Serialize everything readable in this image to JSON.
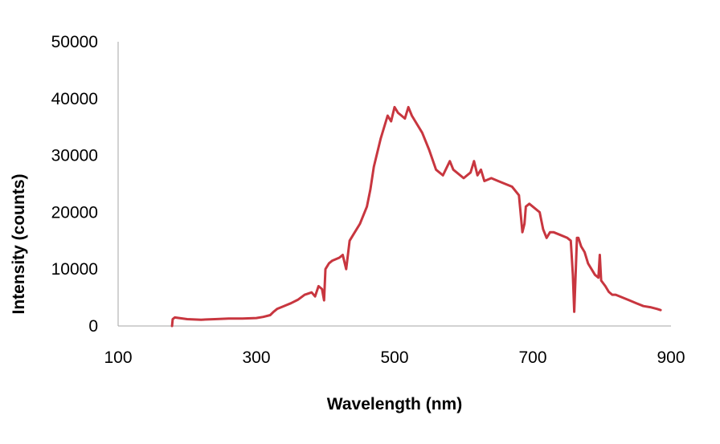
{
  "chart_data": {
    "type": "line",
    "title": "",
    "xlabel": "Wavelength (nm)",
    "ylabel": "Intensity (counts)",
    "xlim": [
      100,
      900
    ],
    "ylim": [
      0,
      50000
    ],
    "x_ticks": [
      "100",
      "300",
      "500",
      "700",
      "900"
    ],
    "y_ticks": [
      "0",
      "10000",
      "20000",
      "30000",
      "40000",
      "50000"
    ],
    "grid": false,
    "legend": "none",
    "colors": {
      "series": "#c8363f",
      "axis": "#a6a6a6"
    },
    "series": [
      {
        "x": [
          178,
          179,
          182,
          200,
          220,
          240,
          260,
          280,
          300,
          310,
          320,
          325,
          330,
          340,
          350,
          360,
          370,
          380,
          385,
          390,
          395,
          398,
          400,
          405,
          410,
          420,
          425,
          430,
          435,
          440,
          450,
          460,
          465,
          470,
          480,
          490,
          495,
          500,
          505,
          510,
          515,
          520,
          525,
          530,
          540,
          550,
          560,
          570,
          580,
          585,
          590,
          600,
          610,
          615,
          620,
          625,
          630,
          640,
          650,
          660,
          670,
          680,
          685,
          688,
          690,
          695,
          700,
          710,
          715,
          720,
          725,
          730,
          740,
          750,
          755,
          758,
          760,
          762,
          764,
          766,
          770,
          775,
          780,
          785,
          790,
          795,
          797,
          799,
          802,
          805,
          810,
          815,
          820,
          830,
          840,
          850,
          860,
          870,
          880,
          885
        ],
        "y": [
          0,
          1200,
          1500,
          1200,
          1100,
          1200,
          1300,
          1300,
          1400,
          1600,
          1900,
          2500,
          3000,
          3500,
          4000,
          4600,
          5500,
          5900,
          5200,
          7000,
          6500,
          4500,
          10000,
          11000,
          11500,
          12000,
          12500,
          10000,
          15000,
          16000,
          18000,
          21000,
          24000,
          28000,
          33000,
          37000,
          36000,
          38500,
          37500,
          37000,
          36500,
          38500,
          37000,
          36000,
          34000,
          31000,
          27500,
          26500,
          29000,
          27500,
          27000,
          26000,
          27000,
          29000,
          26500,
          27500,
          25500,
          26000,
          25500,
          25000,
          24500,
          23000,
          16500,
          18000,
          21000,
          21500,
          21000,
          20000,
          17000,
          15500,
          16500,
          16500,
          16000,
          15500,
          15000,
          9000,
          2500,
          9000,
          15500,
          15500,
          14000,
          13000,
          11000,
          10000,
          9000,
          8500,
          12500,
          8000,
          7500,
          7000,
          6000,
          5500,
          5500,
          5000,
          4500,
          4000,
          3500,
          3300,
          3000,
          2800
        ]
      }
    ]
  }
}
